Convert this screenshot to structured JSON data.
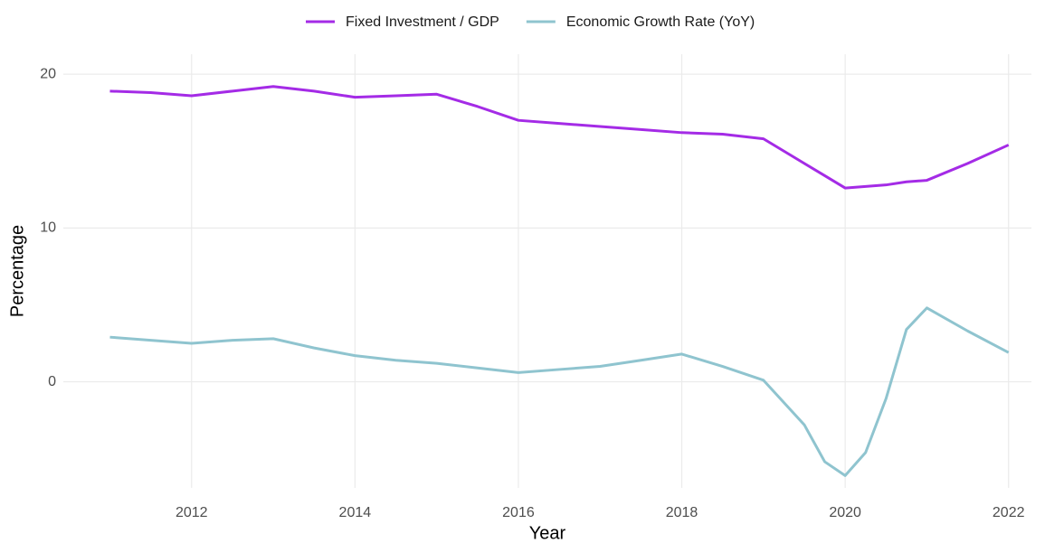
{
  "chart_data": {
    "type": "line",
    "x": [
      2011,
      2011.5,
      2012,
      2012.5,
      2013,
      2013.5,
      2014,
      2014.5,
      2015,
      2015.5,
      2016,
      2016.5,
      2017,
      2017.5,
      2018,
      2018.5,
      2019,
      2019.5,
      2019.75,
      2020,
      2020.25,
      2020.5,
      2020.75,
      2021,
      2021.5,
      2022
    ],
    "series": [
      {
        "name": "Fixed Investment / GDP",
        "color": "#a42be6",
        "values": [
          18.9,
          18.8,
          18.6,
          18.9,
          19.2,
          18.9,
          18.5,
          18.6,
          18.7,
          17.9,
          17.0,
          16.8,
          16.6,
          16.4,
          16.2,
          16.1,
          15.8,
          14.2,
          13.4,
          12.6,
          12.7,
          12.8,
          13.0,
          13.1,
          14.2,
          15.4
        ]
      },
      {
        "name": "Economic Growth Rate (YoY)",
        "color": "#8fc4cf",
        "values": [
          2.9,
          2.7,
          2.5,
          2.7,
          2.8,
          2.2,
          1.7,
          1.4,
          1.2,
          0.9,
          0.6,
          0.8,
          1.0,
          1.4,
          1.8,
          1.0,
          0.1,
          -2.8,
          -5.2,
          -6.1,
          -4.6,
          -1.1,
          3.4,
          4.8,
          3.3,
          1.9
        ]
      }
    ],
    "x_label": "Year",
    "y_label": "Percentage",
    "xlim": [
      2010.43,
      2022.28
    ],
    "xticks": [
      2012,
      2014,
      2016,
      2018,
      2020,
      2022
    ],
    "ylim": [
      -6.9,
      21.3
    ],
    "yticks": [
      0,
      10,
      20
    ],
    "grid": true,
    "legend": "top"
  }
}
